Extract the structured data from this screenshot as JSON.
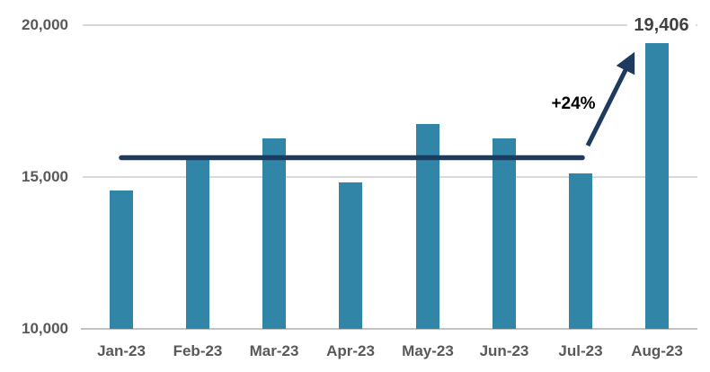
{
  "chart_data": {
    "type": "bar",
    "title": "",
    "xlabel": "",
    "ylabel": "",
    "categories": [
      "Jan-23",
      "Feb-23",
      "Mar-23",
      "Apr-23",
      "May-23",
      "Jun-23",
      "Jul-23",
      "Aug-23"
    ],
    "values": [
      14560,
      15570,
      16270,
      14820,
      16750,
      16270,
      15120,
      19406
    ],
    "ylim": [
      10000,
      20000
    ],
    "yticks": [
      {
        "value": 10000,
        "label": "10,000"
      },
      {
        "value": 15000,
        "label": "15,000"
      },
      {
        "value": 20000,
        "label": "20,000"
      }
    ],
    "grid": "horizontal",
    "legend": "none",
    "bar_color": "#3186a8",
    "reference_line": {
      "value": 15640,
      "spans_categories": [
        "Jan-23",
        "Jul-23"
      ],
      "color": "#1f3a5f"
    },
    "annotations": {
      "data_label": {
        "text": "19,406",
        "bar": "Aug-23",
        "color": "#404040"
      },
      "growth_label": {
        "text": "+24%",
        "color": "#000000"
      },
      "arrow": {
        "description": "diagonal arrow from end of reference line up to top of Aug-23 bar",
        "color": "#1f3a5f"
      }
    }
  },
  "colors": {
    "background": "#ffffff",
    "gridline": "#d9d9d9",
    "axis_line": "#c3c3c3",
    "axis_text": "#595959"
  }
}
